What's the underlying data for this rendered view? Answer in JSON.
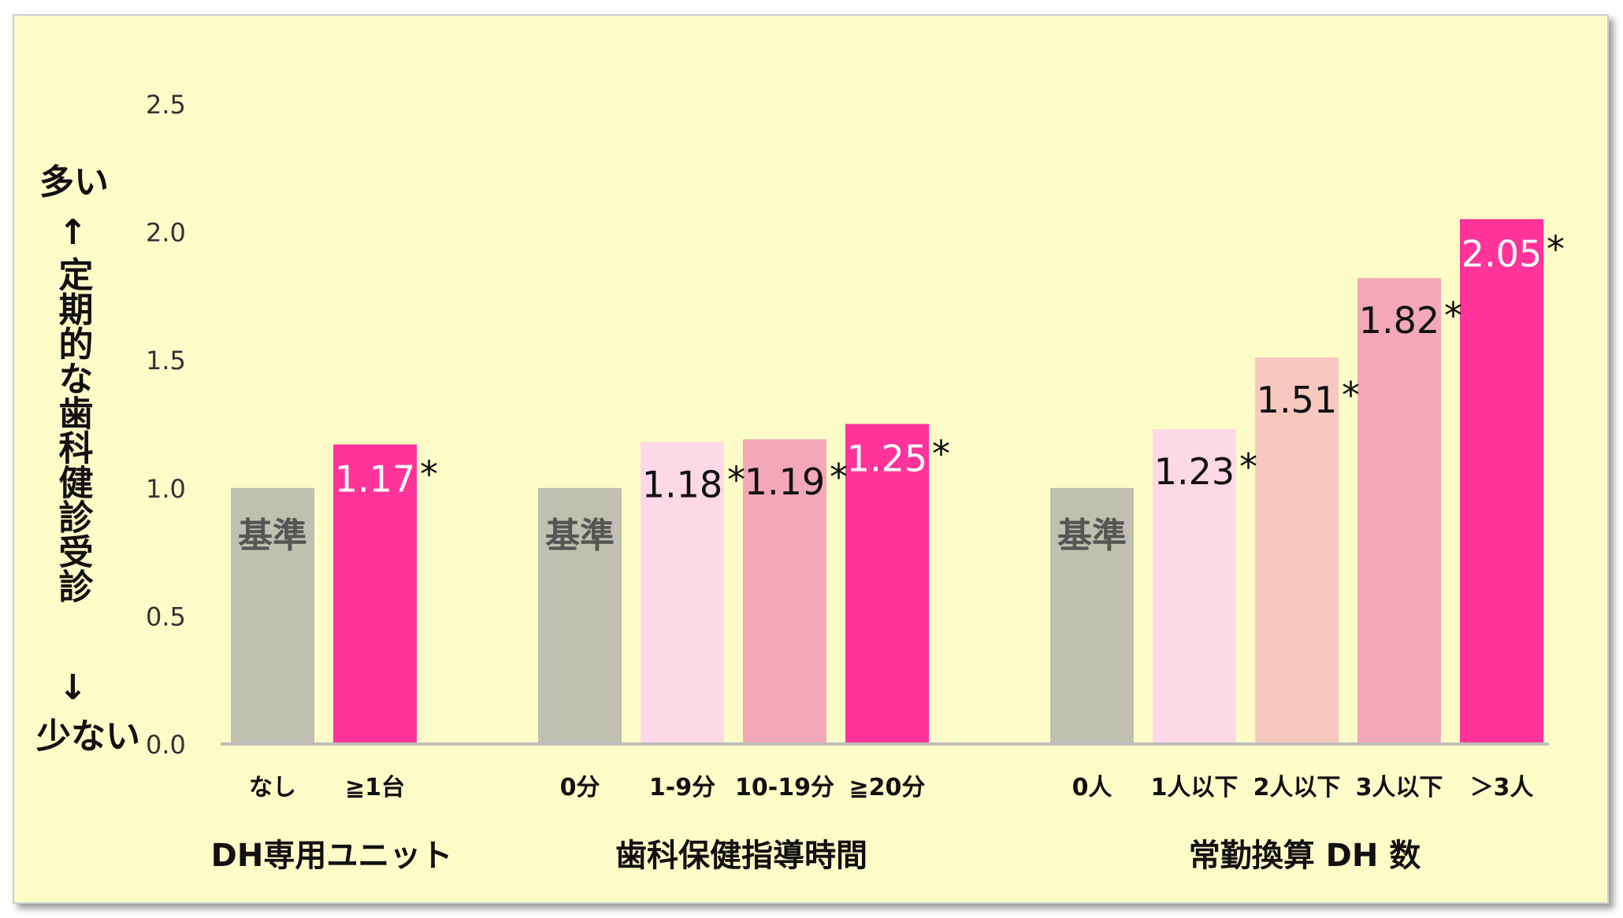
{
  "chart_data": {
    "type": "bar",
    "ylim": [
      0,
      2.5
    ],
    "yticks": [
      "0.0",
      "0.5",
      "1.0",
      "1.5",
      "2.0",
      "2.5"
    ],
    "ytitle": {
      "top": "多い",
      "up_arrow": "↑",
      "label": "定期的な歯科健診受診",
      "down_arrow": "↓",
      "bottom": "少ない"
    },
    "reference_label": "基準",
    "significance_mark": "*",
    "groups": [
      {
        "name": "DH専用ユニット",
        "bars": [
          {
            "category": "なし",
            "value": 1.0,
            "label": "基準",
            "reference": true,
            "significant": false,
            "color": "#c0c0b0",
            "label_color": "#555555"
          },
          {
            "category": "≧1台",
            "value": 1.17,
            "label": "1.17",
            "reference": false,
            "significant": true,
            "color": "#ff3399",
            "label_color": "#ffffff"
          }
        ]
      },
      {
        "name": "歯科保健指導時間",
        "bars": [
          {
            "category": "0分",
            "value": 1.0,
            "label": "基準",
            "reference": true,
            "significant": false,
            "color": "#c0c0b0",
            "label_color": "#555555"
          },
          {
            "category": "1-9分",
            "value": 1.18,
            "label": "1.18",
            "reference": false,
            "significant": true,
            "color": "#fdd8e6",
            "label_color": "#111111"
          },
          {
            "category": "10-19分",
            "value": 1.19,
            "label": "1.19",
            "reference": false,
            "significant": true,
            "color": "#f2a8b8",
            "label_color": "#111111"
          },
          {
            "category": "≧20分",
            "value": 1.25,
            "label": "1.25",
            "reference": false,
            "significant": true,
            "color": "#ff3399",
            "label_color": "#ffffff"
          }
        ]
      },
      {
        "name": "常勤換算 DH 数",
        "bars": [
          {
            "category": "0人",
            "value": 1.0,
            "label": "基準",
            "reference": true,
            "significant": false,
            "color": "#c0c0b0",
            "label_color": "#555555"
          },
          {
            "category": "1人以下",
            "value": 1.23,
            "label": "1.23",
            "reference": false,
            "significant": true,
            "color": "#fdd8e6",
            "label_color": "#111111"
          },
          {
            "category": "2人以下",
            "value": 1.51,
            "label": "1.51",
            "reference": false,
            "significant": true,
            "color": "#f7c8c0",
            "label_color": "#111111"
          },
          {
            "category": "3人以下",
            "value": 1.82,
            "label": "1.82",
            "reference": false,
            "significant": true,
            "color": "#f2a8b8",
            "label_color": "#111111"
          },
          {
            "category": "＞3人",
            "value": 2.05,
            "label": "2.05",
            "reference": false,
            "significant": true,
            "color": "#ff3399",
            "label_color": "#ffffff"
          }
        ]
      }
    ]
  }
}
